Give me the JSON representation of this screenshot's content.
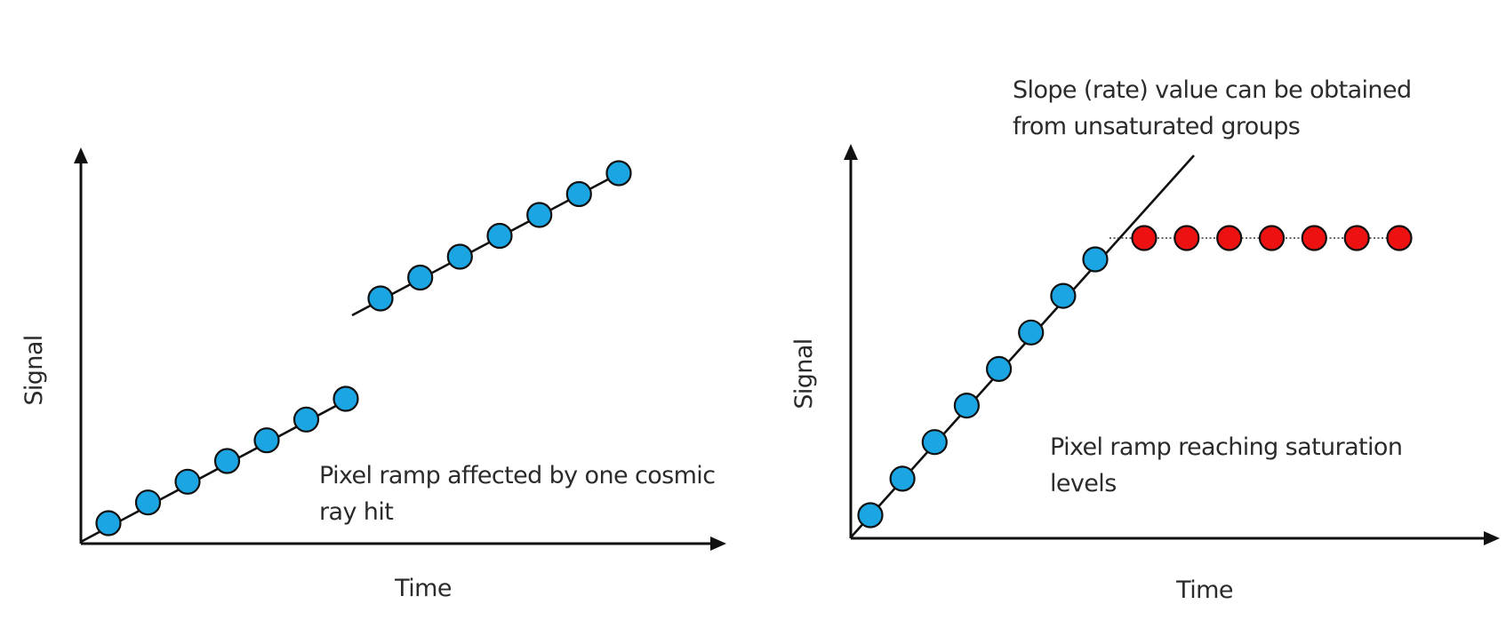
{
  "colors": {
    "unsaturated_point": "#1ba5e2",
    "saturated_point": "#ee1111",
    "point_outline": "#111111",
    "axis": "#111111"
  },
  "left_panel": {
    "y_axis_label": "Signal",
    "x_axis_label": "Time",
    "caption_lines": [
      "Pixel ramp affected by one cosmic",
      "ray hit"
    ],
    "before_hit_group_count": 7,
    "after_hit_group_count": 7
  },
  "right_panel": {
    "y_axis_label": "Signal",
    "x_axis_label": "Time",
    "annotation_lines": [
      "Slope (rate) value can be obtained",
      "from unsaturated groups"
    ],
    "caption_lines": [
      "Pixel ramp reaching saturation",
      "levels"
    ],
    "unsaturated_group_count": 8,
    "saturated_group_count": 7
  }
}
